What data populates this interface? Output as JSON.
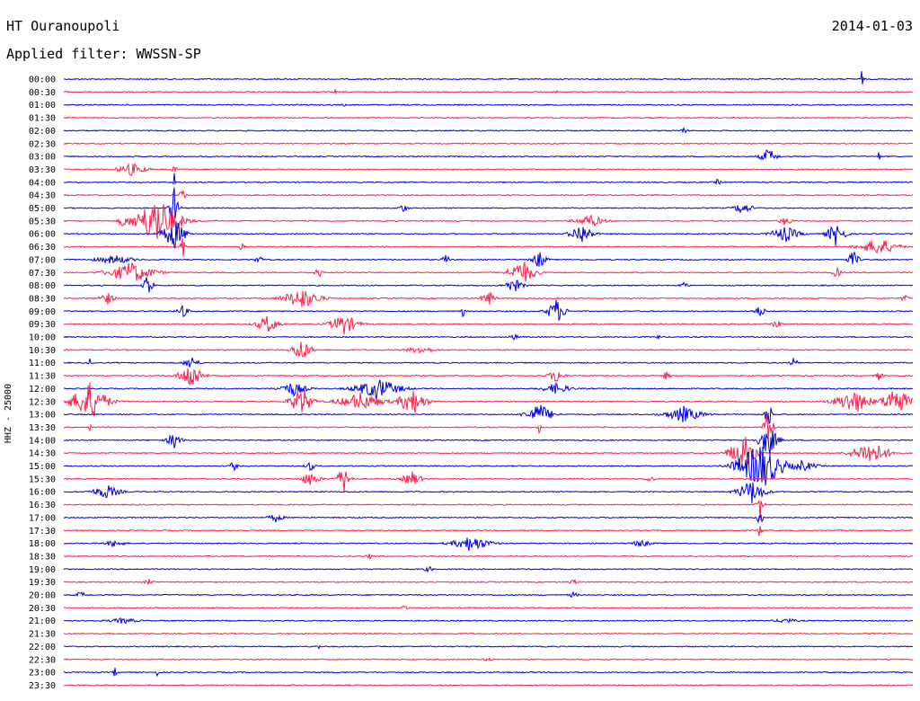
{
  "header": {
    "station": "HT Ouranoupoli",
    "date": "2014-01-03",
    "filter": "Applied filter: WWSSN-SP"
  },
  "axis": {
    "channel_label": "HHZ - 25000"
  },
  "colors": {
    "trace_a": "#0000e0",
    "trace_b": "#ff1f4b"
  },
  "rows": [
    {
      "time": "00:00",
      "events": [
        {
          "t": 0.94,
          "a": 12,
          "w": 3
        }
      ]
    },
    {
      "time": "00:30",
      "events": [
        {
          "t": 0.06,
          "a": 3,
          "w": 2
        },
        {
          "t": 0.32,
          "a": 3,
          "w": 3
        },
        {
          "t": 0.58,
          "a": 3,
          "w": 2
        }
      ]
    },
    {
      "time": "01:00",
      "events": [
        {
          "t": 0.33,
          "a": 2,
          "w": 3
        }
      ]
    },
    {
      "time": "01:30",
      "events": []
    },
    {
      "time": "02:00",
      "events": [
        {
          "t": 0.73,
          "a": 3,
          "w": 8
        }
      ]
    },
    {
      "time": "02:30",
      "events": []
    },
    {
      "time": "03:00",
      "events": [
        {
          "t": 0.83,
          "a": 9,
          "w": 18
        },
        {
          "t": 0.96,
          "a": 6,
          "w": 3
        }
      ]
    },
    {
      "time": "03:30",
      "events": [
        {
          "t": 0.08,
          "a": 7,
          "w": 30
        },
        {
          "t": 0.13,
          "a": 6,
          "w": 6
        }
      ]
    },
    {
      "time": "04:00",
      "events": [
        {
          "t": 0.13,
          "a": 12,
          "w": 3
        },
        {
          "t": 0.77,
          "a": 3,
          "w": 8
        }
      ]
    },
    {
      "time": "04:30",
      "events": [
        {
          "t": 0.14,
          "a": 8,
          "w": 8
        }
      ]
    },
    {
      "time": "05:00",
      "events": [
        {
          "t": 0.13,
          "a": 24,
          "w": 10
        },
        {
          "t": 0.4,
          "a": 5,
          "w": 10
        },
        {
          "t": 0.8,
          "a": 7,
          "w": 20
        }
      ]
    },
    {
      "time": "05:30",
      "events": [
        {
          "t": 0.07,
          "a": 8,
          "w": 10
        },
        {
          "t": 0.11,
          "a": 28,
          "w": 50
        },
        {
          "t": 0.62,
          "a": 7,
          "w": 30
        },
        {
          "t": 0.85,
          "a": 6,
          "w": 12
        }
      ]
    },
    {
      "time": "06:00",
      "events": [
        {
          "t": 0.13,
          "a": 18,
          "w": 25
        },
        {
          "t": 0.61,
          "a": 12,
          "w": 25
        },
        {
          "t": 0.85,
          "a": 9,
          "w": 30
        },
        {
          "t": 0.91,
          "a": 14,
          "w": 20
        }
      ]
    },
    {
      "time": "06:30",
      "events": [
        {
          "t": 0.21,
          "a": 6,
          "w": 5
        },
        {
          "t": 0.14,
          "a": 14,
          "w": 6
        },
        {
          "t": 0.96,
          "a": 10,
          "w": 40
        }
      ]
    },
    {
      "time": "07:00",
      "events": [
        {
          "t": 0.06,
          "a": 5,
          "w": 40
        },
        {
          "t": 0.23,
          "a": 5,
          "w": 8
        },
        {
          "t": 0.45,
          "a": 6,
          "w": 8
        },
        {
          "t": 0.56,
          "a": 10,
          "w": 15
        },
        {
          "t": 0.93,
          "a": 10,
          "w": 12
        }
      ]
    },
    {
      "time": "07:30",
      "events": [
        {
          "t": 0.08,
          "a": 12,
          "w": 50
        },
        {
          "t": 0.3,
          "a": 6,
          "w": 8
        },
        {
          "t": 0.54,
          "a": 14,
          "w": 30
        },
        {
          "t": 0.91,
          "a": 8,
          "w": 8
        }
      ]
    },
    {
      "time": "08:00",
      "events": [
        {
          "t": 0.1,
          "a": 16,
          "w": 10
        },
        {
          "t": 0.53,
          "a": 8,
          "w": 20
        },
        {
          "t": 0.73,
          "a": 5,
          "w": 8
        }
      ]
    },
    {
      "time": "08:30",
      "events": [
        {
          "t": 0.05,
          "a": 9,
          "w": 15
        },
        {
          "t": 0.28,
          "a": 12,
          "w": 40
        },
        {
          "t": 0.5,
          "a": 9,
          "w": 15
        },
        {
          "t": 0.99,
          "a": 4,
          "w": 8
        }
      ]
    },
    {
      "time": "09:00",
      "events": [
        {
          "t": 0.14,
          "a": 7,
          "w": 12
        },
        {
          "t": 0.47,
          "a": 7,
          "w": 4
        },
        {
          "t": 0.58,
          "a": 14,
          "w": 20
        },
        {
          "t": 0.82,
          "a": 6,
          "w": 12
        }
      ]
    },
    {
      "time": "09:30",
      "events": [
        {
          "t": 0.24,
          "a": 10,
          "w": 25
        },
        {
          "t": 0.33,
          "a": 12,
          "w": 30
        },
        {
          "t": 0.84,
          "a": 5,
          "w": 10
        }
      ]
    },
    {
      "time": "10:00",
      "events": [
        {
          "t": 0.53,
          "a": 4,
          "w": 8
        },
        {
          "t": 0.7,
          "a": 6,
          "w": 3
        }
      ]
    },
    {
      "time": "10:30",
      "events": [
        {
          "t": 0.28,
          "a": 14,
          "w": 20
        },
        {
          "t": 0.42,
          "a": 4,
          "w": 30
        }
      ]
    },
    {
      "time": "11:00",
      "events": [
        {
          "t": 0.03,
          "a": 9,
          "w": 3
        },
        {
          "t": 0.15,
          "a": 8,
          "w": 15
        },
        {
          "t": 0.86,
          "a": 6,
          "w": 8
        }
      ]
    },
    {
      "time": "11:30",
      "events": [
        {
          "t": 0.15,
          "a": 16,
          "w": 25
        },
        {
          "t": 0.58,
          "a": 9,
          "w": 15
        },
        {
          "t": 0.71,
          "a": 5,
          "w": 8
        },
        {
          "t": 0.96,
          "a": 5,
          "w": 8
        }
      ]
    },
    {
      "time": "12:00",
      "events": [
        {
          "t": 0.27,
          "a": 8,
          "w": 30
        },
        {
          "t": 0.37,
          "a": 12,
          "w": 50
        },
        {
          "t": 0.58,
          "a": 6,
          "w": 30
        }
      ]
    },
    {
      "time": "12:30",
      "events": [
        {
          "t": 0.03,
          "a": 22,
          "w": 40
        },
        {
          "t": 0.28,
          "a": 16,
          "w": 25
        },
        {
          "t": 0.35,
          "a": 10,
          "w": 50
        },
        {
          "t": 0.41,
          "a": 16,
          "w": 30
        },
        {
          "t": 0.93,
          "a": 14,
          "w": 40
        },
        {
          "t": 0.98,
          "a": 18,
          "w": 30
        }
      ]
    },
    {
      "time": "13:00",
      "events": [
        {
          "t": 0.56,
          "a": 12,
          "w": 30
        },
        {
          "t": 0.73,
          "a": 9,
          "w": 40
        },
        {
          "t": 0.83,
          "a": 18,
          "w": 8
        }
      ]
    },
    {
      "time": "13:30",
      "events": [
        {
          "t": 0.03,
          "a": 14,
          "w": 3
        },
        {
          "t": 0.56,
          "a": 8,
          "w": 3
        },
        {
          "t": 0.83,
          "a": 26,
          "w": 10
        }
      ]
    },
    {
      "time": "14:00",
      "events": [
        {
          "t": 0.13,
          "a": 10,
          "w": 15
        },
        {
          "t": 0.83,
          "a": 20,
          "w": 20
        }
      ]
    },
    {
      "time": "14:30",
      "events": [
        {
          "t": 0.8,
          "a": 22,
          "w": 30
        },
        {
          "t": 0.95,
          "a": 14,
          "w": 40
        }
      ]
    },
    {
      "time": "15:00",
      "events": [
        {
          "t": 0.2,
          "a": 6,
          "w": 8
        },
        {
          "t": 0.29,
          "a": 6,
          "w": 10
        },
        {
          "t": 0.82,
          "a": 28,
          "w": 50
        },
        {
          "t": 0.87,
          "a": 6,
          "w": 30
        }
      ]
    },
    {
      "time": "15:30",
      "events": [
        {
          "t": 0.29,
          "a": 8,
          "w": 20
        },
        {
          "t": 0.33,
          "a": 16,
          "w": 15
        },
        {
          "t": 0.41,
          "a": 9,
          "w": 20
        },
        {
          "t": 0.69,
          "a": 4,
          "w": 10
        }
      ]
    },
    {
      "time": "16:00",
      "events": [
        {
          "t": 0.05,
          "a": 8,
          "w": 30
        },
        {
          "t": 0.81,
          "a": 14,
          "w": 30
        }
      ]
    },
    {
      "time": "16:30",
      "events": [
        {
          "t": 0.82,
          "a": 18,
          "w": 8
        }
      ]
    },
    {
      "time": "17:00",
      "events": [
        {
          "t": 0.25,
          "a": 5,
          "w": 15
        },
        {
          "t": 0.82,
          "a": 12,
          "w": 6
        }
      ]
    },
    {
      "time": "17:30",
      "events": [
        {
          "t": 0.82,
          "a": 8,
          "w": 6
        }
      ]
    },
    {
      "time": "18:00",
      "events": [
        {
          "t": 0.06,
          "a": 4,
          "w": 20
        },
        {
          "t": 0.48,
          "a": 9,
          "w": 40
        },
        {
          "t": 0.68,
          "a": 4,
          "w": 20
        }
      ]
    },
    {
      "time": "18:30",
      "events": [
        {
          "t": 0.36,
          "a": 3,
          "w": 6
        }
      ]
    },
    {
      "time": "19:00",
      "events": [
        {
          "t": 0.43,
          "a": 3,
          "w": 10
        }
      ]
    },
    {
      "time": "19:30",
      "events": [
        {
          "t": 0.1,
          "a": 3,
          "w": 10
        },
        {
          "t": 0.6,
          "a": 3,
          "w": 10
        }
      ]
    },
    {
      "time": "20:00",
      "events": [
        {
          "t": 0.02,
          "a": 4,
          "w": 10
        },
        {
          "t": 0.6,
          "a": 3,
          "w": 10
        }
      ]
    },
    {
      "time": "20:30",
      "events": [
        {
          "t": 0.4,
          "a": 2,
          "w": 10
        }
      ]
    },
    {
      "time": "21:00",
      "events": [
        {
          "t": 0.07,
          "a": 3,
          "w": 30
        },
        {
          "t": 0.85,
          "a": 3,
          "w": 20
        }
      ]
    },
    {
      "time": "21:30",
      "events": []
    },
    {
      "time": "22:00",
      "events": [
        {
          "t": 0.3,
          "a": 3,
          "w": 4
        }
      ]
    },
    {
      "time": "22:30",
      "events": [
        {
          "t": 0.5,
          "a": 2,
          "w": 10
        }
      ]
    },
    {
      "time": "23:00",
      "events": [
        {
          "t": 0.06,
          "a": 10,
          "w": 3
        },
        {
          "t": 0.11,
          "a": 4,
          "w": 3
        }
      ]
    },
    {
      "time": "23:30",
      "events": []
    }
  ]
}
